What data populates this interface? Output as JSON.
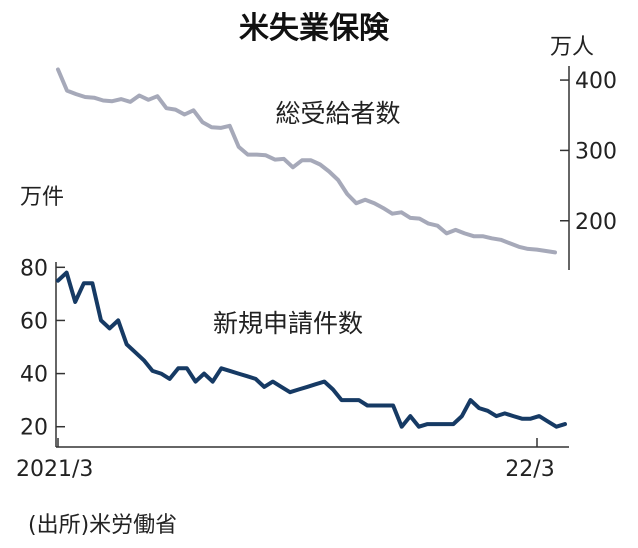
{
  "chart_data": {
    "type": "line",
    "title": "米失業保険",
    "source": "(出所)米労働省",
    "x_tick_labels": [
      "2021/3",
      "22/3"
    ],
    "upper": {
      "unit": "万人",
      "axis_side": "right",
      "ylim": [
        130,
        420
      ],
      "y_ticks": [
        200,
        300,
        400
      ],
      "series": [
        {
          "name": "総受給者数",
          "color": "#a6a9b9",
          "values": [
            415,
            385,
            380,
            376,
            375,
            371,
            370,
            373,
            369,
            378,
            372,
            377,
            360,
            358,
            351,
            357,
            340,
            333,
            332,
            335,
            305,
            294,
            294,
            293,
            287,
            288,
            276,
            286,
            286,
            280,
            270,
            258,
            238,
            225,
            230,
            225,
            218,
            210,
            212,
            204,
            203,
            196,
            193,
            182,
            187,
            182,
            178,
            178,
            175,
            173,
            168,
            163,
            160,
            159,
            157,
            155
          ]
        }
      ]
    },
    "lower": {
      "unit": "万件",
      "axis_side": "left",
      "ylim": [
        15,
        82
      ],
      "y_ticks": [
        20,
        40,
        60,
        80
      ],
      "series": [
        {
          "name": "新規申請件数",
          "color": "#163a64",
          "values": [
            75,
            78,
            67,
            74,
            74,
            60,
            57,
            60,
            51,
            48,
            45,
            41,
            40,
            38,
            42,
            42,
            37,
            40,
            37,
            42,
            41,
            40,
            39,
            38,
            35,
            37,
            35,
            33,
            34,
            35,
            36,
            37,
            34,
            30,
            30,
            30,
            28,
            28,
            28,
            28,
            20,
            24,
            20,
            21,
            21,
            21,
            21,
            24,
            30,
            27,
            26,
            24,
            25,
            24,
            23,
            23,
            24,
            22,
            20,
            21
          ]
        }
      ]
    }
  }
}
